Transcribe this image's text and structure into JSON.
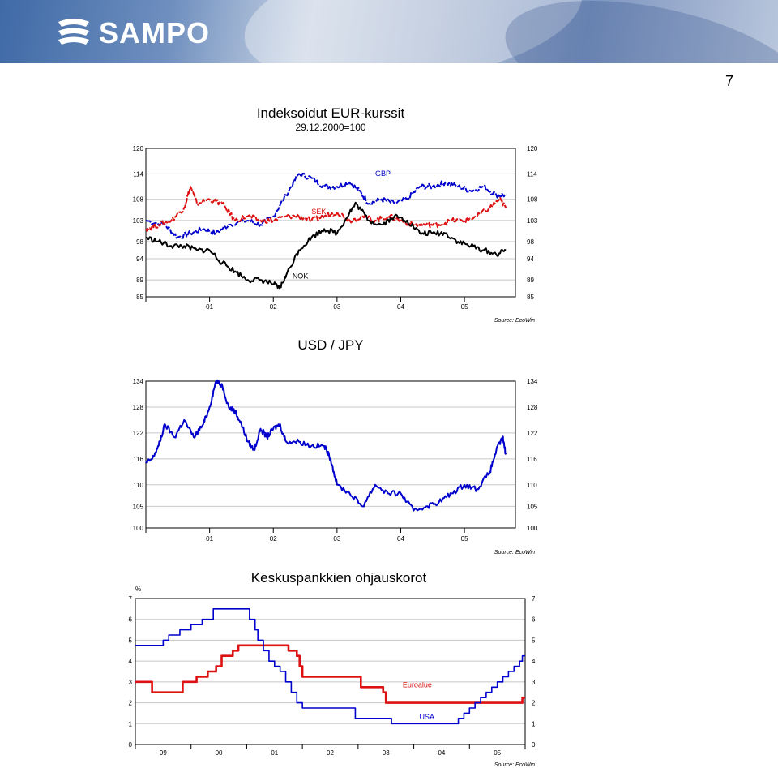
{
  "brand": {
    "name": "SAMPO"
  },
  "page": {
    "number": "7"
  },
  "charts": [
    {
      "title": "Indeksoidut EUR-kurssit",
      "subtitle": "29.12.2000=100",
      "source": "Source: EcoWin",
      "colors": {
        "GBP": "#0000cc",
        "SEK": "#dd1111",
        "NOK": "#000000"
      }
    },
    {
      "title": "USD / JPY",
      "source": "Source: EcoWin",
      "colors": {
        "USDJPY": "#0000cc"
      }
    },
    {
      "title": "Keskuspankkien ohjauskorot",
      "unit": "%",
      "source": "Source: EcoWin",
      "colors": {
        "Euroalue": "#dd1111",
        "USA": "#0000cc"
      }
    }
  ],
  "chart_data": [
    {
      "type": "line",
      "title": "Indeksoidut EUR-kurssit",
      "subtitle": "29.12.2000=100",
      "yticks": [
        85,
        89,
        94,
        98,
        103,
        108,
        114,
        120
      ],
      "ylim": [
        85,
        120
      ],
      "xlim": [
        0,
        5.8
      ],
      "xticks": [
        {
          "x": 1,
          "label": "01"
        },
        {
          "x": 2,
          "label": "02"
        },
        {
          "x": 3,
          "label": "03"
        },
        {
          "x": 4,
          "label": "04"
        },
        {
          "x": 5,
          "label": "05"
        }
      ],
      "grid": true,
      "series": [
        {
          "name": "GBP",
          "points": [
            [
              0,
              103
            ],
            [
              0.3,
              102
            ],
            [
              0.5,
              99
            ],
            [
              0.7,
              100
            ],
            [
              0.9,
              101
            ],
            [
              1.1,
              100
            ],
            [
              1.3,
              102
            ],
            [
              1.6,
              103
            ],
            [
              1.8,
              102
            ],
            [
              2.0,
              104
            ],
            [
              2.2,
              109
            ],
            [
              2.4,
              114
            ],
            [
              2.6,
              113
            ],
            [
              2.8,
              111
            ],
            [
              3.0,
              111
            ],
            [
              3.2,
              112
            ],
            [
              3.35,
              110
            ],
            [
              3.5,
              107
            ],
            [
              3.7,
              108
            ],
            [
              3.9,
              107
            ],
            [
              4.1,
              108
            ],
            [
              4.3,
              111
            ],
            [
              4.5,
              111
            ],
            [
              4.7,
              112
            ],
            [
              4.9,
              111
            ],
            [
              5.1,
              110
            ],
            [
              5.3,
              111
            ],
            [
              5.5,
              109
            ],
            [
              5.65,
              109
            ]
          ]
        },
        {
          "name": "SEK",
          "points": [
            [
              0,
              101
            ],
            [
              0.2,
              102
            ],
            [
              0.4,
              103
            ],
            [
              0.6,
              106
            ],
            [
              0.7,
              111
            ],
            [
              0.8,
              107
            ],
            [
              1.0,
              108
            ],
            [
              1.2,
              107
            ],
            [
              1.4,
              103
            ],
            [
              1.6,
              104
            ],
            [
              1.8,
              103
            ],
            [
              2.0,
              103
            ],
            [
              2.2,
              104
            ],
            [
              2.4,
              104
            ],
            [
              2.6,
              103
            ],
            [
              2.8,
              104
            ],
            [
              3.0,
              105
            ],
            [
              3.2,
              103
            ],
            [
              3.4,
              104
            ],
            [
              3.6,
              103
            ],
            [
              3.8,
              104
            ],
            [
              4.0,
              103
            ],
            [
              4.2,
              102
            ],
            [
              4.4,
              102
            ],
            [
              4.6,
              102
            ],
            [
              4.8,
              103
            ],
            [
              5.0,
              103
            ],
            [
              5.2,
              104
            ],
            [
              5.4,
              106
            ],
            [
              5.55,
              108
            ],
            [
              5.65,
              106
            ]
          ]
        },
        {
          "name": "NOK",
          "points": [
            [
              0,
              99
            ],
            [
              0.2,
              98
            ],
            [
              0.4,
              97
            ],
            [
              0.6,
              97
            ],
            [
              0.8,
              96
            ],
            [
              1.0,
              96
            ],
            [
              1.2,
              93
            ],
            [
              1.4,
              91
            ],
            [
              1.6,
              89
            ],
            [
              1.8,
              89
            ],
            [
              2.0,
              88
            ],
            [
              2.1,
              87
            ],
            [
              2.2,
              90
            ],
            [
              2.4,
              96
            ],
            [
              2.6,
              99
            ],
            [
              2.8,
              101
            ],
            [
              3.0,
              100
            ],
            [
              3.2,
              105
            ],
            [
              3.3,
              107
            ],
            [
              3.5,
              103
            ],
            [
              3.7,
              102
            ],
            [
              3.9,
              104
            ],
            [
              4.1,
              103
            ],
            [
              4.3,
              100
            ],
            [
              4.5,
              100
            ],
            [
              4.7,
              100
            ],
            [
              4.9,
              98
            ],
            [
              5.1,
              97
            ],
            [
              5.3,
              96
            ],
            [
              5.5,
              95
            ],
            [
              5.65,
              96
            ]
          ]
        }
      ],
      "annotations": [
        {
          "text": "GBP",
          "x": 3.6,
          "y": 113.5
        },
        {
          "text": "SEK",
          "x": 2.6,
          "y": 104.5
        },
        {
          "text": "NOK",
          "x": 2.3,
          "y": 89.3
        }
      ]
    },
    {
      "type": "line",
      "title": "USD / JPY",
      "yticks": [
        100,
        105,
        110,
        116,
        122,
        128,
        134
      ],
      "ylim": [
        100,
        134
      ],
      "xlim": [
        0,
        5.8
      ],
      "xticks": [
        {
          "x": 1,
          "label": "01"
        },
        {
          "x": 2,
          "label": "02"
        },
        {
          "x": 3,
          "label": "03"
        },
        {
          "x": 4,
          "label": "04"
        },
        {
          "x": 5,
          "label": "05"
        }
      ],
      "grid": true,
      "series": [
        {
          "name": "USD / JPY",
          "points": [
            [
              0,
              115
            ],
            [
              0.1,
              116
            ],
            [
              0.2,
              119
            ],
            [
              0.3,
              124
            ],
            [
              0.45,
              121
            ],
            [
              0.6,
              125
            ],
            [
              0.75,
              121
            ],
            [
              0.9,
              124
            ],
            [
              1.0,
              128
            ],
            [
              1.1,
              134
            ],
            [
              1.2,
              133
            ],
            [
              1.3,
              128
            ],
            [
              1.4,
              127
            ],
            [
              1.5,
              124
            ],
            [
              1.6,
              120
            ],
            [
              1.7,
              118
            ],
            [
              1.8,
              123
            ],
            [
              1.9,
              121
            ],
            [
              2.0,
              123
            ],
            [
              2.1,
              124
            ],
            [
              2.2,
              120
            ],
            [
              2.4,
              120
            ],
            [
              2.6,
              119
            ],
            [
              2.8,
              119
            ],
            [
              2.9,
              116
            ],
            [
              3.0,
              110
            ],
            [
              3.2,
              108
            ],
            [
              3.4,
              105
            ],
            [
              3.6,
              110
            ],
            [
              3.8,
              108
            ],
            [
              4.0,
              108
            ],
            [
              4.2,
              104
            ],
            [
              4.4,
              105
            ],
            [
              4.6,
              106
            ],
            [
              4.8,
              108
            ],
            [
              5.0,
              110
            ],
            [
              5.2,
              109
            ],
            [
              5.4,
              113
            ],
            [
              5.5,
              118
            ],
            [
              5.6,
              121
            ],
            [
              5.65,
              117
            ]
          ]
        }
      ]
    },
    {
      "type": "line",
      "title": "Keskuspankkien ohjauskorot",
      "ylabel": "%",
      "yticks": [
        0,
        1,
        2,
        3,
        4,
        5,
        6,
        7
      ],
      "ylim": [
        0,
        7
      ],
      "xlim": [
        0,
        7
      ],
      "xticks": [
        {
          "x": 0.5,
          "label": "99"
        },
        {
          "x": 1.5,
          "label": "00"
        },
        {
          "x": 2.5,
          "label": "01"
        },
        {
          "x": 3.5,
          "label": "02"
        },
        {
          "x": 4.5,
          "label": "03"
        },
        {
          "x": 5.5,
          "label": "04"
        },
        {
          "x": 6.5,
          "label": "05"
        }
      ],
      "grid": true,
      "series": [
        {
          "name": "Euroalue",
          "step": true,
          "points": [
            [
              0,
              3
            ],
            [
              0.3,
              2.5
            ],
            [
              0.85,
              3
            ],
            [
              1.1,
              3.25
            ],
            [
              1.3,
              3.5
            ],
            [
              1.45,
              3.75
            ],
            [
              1.55,
              4.25
            ],
            [
              1.75,
              4.5
            ],
            [
              1.85,
              4.75
            ],
            [
              2.75,
              4.5
            ],
            [
              2.9,
              4.25
            ],
            [
              2.95,
              3.75
            ],
            [
              3.0,
              3.25
            ],
            [
              4.0,
              3.25
            ],
            [
              4.05,
              2.75
            ],
            [
              4.45,
              2.5
            ],
            [
              4.5,
              2.0
            ],
            [
              6.95,
              2.0
            ],
            [
              6.95,
              2.25
            ]
          ]
        },
        {
          "name": "USA",
          "step": true,
          "points": [
            [
              0,
              4.75
            ],
            [
              0.5,
              5.0
            ],
            [
              0.6,
              5.25
            ],
            [
              0.8,
              5.5
            ],
            [
              1.0,
              5.75
            ],
            [
              1.2,
              6.0
            ],
            [
              1.4,
              6.5
            ],
            [
              2.05,
              6.0
            ],
            [
              2.15,
              5.5
            ],
            [
              2.2,
              5.0
            ],
            [
              2.3,
              4.5
            ],
            [
              2.4,
              4.0
            ],
            [
              2.5,
              3.75
            ],
            [
              2.6,
              3.5
            ],
            [
              2.7,
              3.0
            ],
            [
              2.8,
              2.5
            ],
            [
              2.9,
              2.0
            ],
            [
              3.0,
              1.75
            ],
            [
              3.9,
              1.75
            ],
            [
              3.95,
              1.25
            ],
            [
              4.6,
              1.25
            ],
            [
              4.6,
              1.0
            ],
            [
              5.7,
              1.0
            ],
            [
              5.8,
              1.25
            ],
            [
              5.9,
              1.5
            ],
            [
              6.0,
              1.75
            ],
            [
              6.1,
              2.0
            ],
            [
              6.2,
              2.25
            ],
            [
              6.3,
              2.5
            ],
            [
              6.4,
              2.75
            ],
            [
              6.5,
              3.0
            ],
            [
              6.6,
              3.25
            ],
            [
              6.7,
              3.5
            ],
            [
              6.8,
              3.75
            ],
            [
              6.9,
              4.0
            ],
            [
              6.95,
              4.25
            ]
          ]
        }
      ],
      "annotations": [
        {
          "text": "Euroalue",
          "x": 4.8,
          "y": 2.75
        },
        {
          "text": "USA",
          "x": 5.1,
          "y": 1.2
        }
      ]
    }
  ]
}
